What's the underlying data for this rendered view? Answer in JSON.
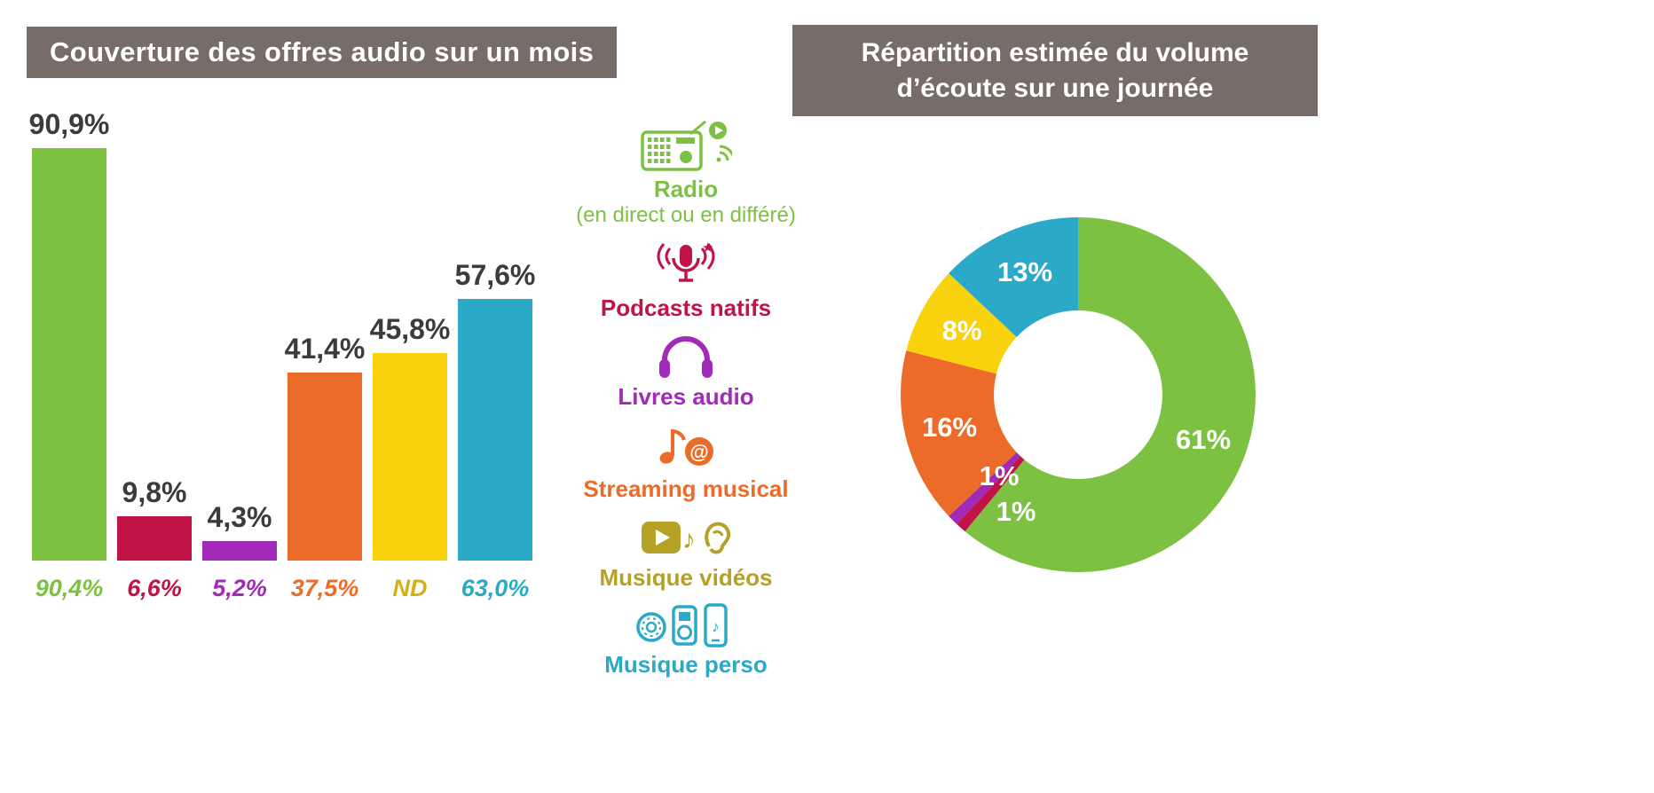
{
  "colors": {
    "title_bg": "#776D68",
    "title_text": "#FFFFFF",
    "value_label": "#3B3B3A",
    "green": "#7DC142",
    "crimson": "#C11346",
    "purple": "#A12BB8",
    "orange": "#EC6B29",
    "yellow": "#F8D20C",
    "olive": "#B5A125",
    "cyan": "#2AAAC8"
  },
  "left_panel": {
    "title": "Couverture des offres audio sur un mois"
  },
  "right_panel": {
    "title_line1": "Répartition estimée du volume",
    "title_line2": "d’écoute sur une journée"
  },
  "legend": {
    "items": [
      {
        "icon": "radio-icon",
        "label": "Radio",
        "sublabel": "(en direct ou en différé)",
        "color": "#7DC142"
      },
      {
        "icon": "podcast-icon",
        "label": "Podcasts natifs",
        "color": "#C11346"
      },
      {
        "icon": "headphones-icon",
        "label": "Livres audio",
        "color": "#A12BB8"
      },
      {
        "icon": "streaming-icon",
        "label": "Streaming musical",
        "color": "#EC6B29"
      },
      {
        "icon": "video-music-icon",
        "label": "Musique vidéos",
        "color": "#B5A125"
      },
      {
        "icon": "personal-music-icon",
        "label": "Musique perso",
        "color": "#2AAAC8"
      }
    ]
  },
  "chart_data": [
    {
      "type": "bar",
      "title": "Couverture des offres audio sur un mois",
      "categories": [
        "Radio (en direct ou en différé)",
        "Podcasts natifs",
        "Livres audio",
        "Streaming musical",
        "Musique vidéos",
        "Musique perso"
      ],
      "values": [
        90.9,
        9.8,
        4.3,
        41.4,
        45.8,
        57.6
      ],
      "value_labels": [
        "90,9%",
        "9,8%",
        "4,3%",
        "41,4%",
        "45,8%",
        "57,6%"
      ],
      "secondary_labels": [
        "90,4%",
        "6,6%",
        "5,2%",
        "37,5%",
        "ND",
        "63,0%"
      ],
      "bar_colors": [
        "#7DC142",
        "#C11346",
        "#A12BB8",
        "#EC6B29",
        "#F8D20C",
        "#2AAAC8"
      ],
      "secondary_label_colors": [
        "#7DC142",
        "#C11346",
        "#A12BB8",
        "#EC6B29",
        "#D3B217",
        "#2AAAC8"
      ],
      "xlabel": "",
      "ylabel": "",
      "ylim": [
        0,
        100
      ],
      "grid": false
    },
    {
      "type": "pie",
      "donut": true,
      "title": "Répartition estimée du volume d’écoute sur une journée",
      "categories": [
        "Radio (en direct ou en différé)",
        "Podcasts natifs",
        "Livres audio",
        "Streaming musical",
        "Musique vidéos",
        "Musique perso"
      ],
      "values": [
        61,
        1,
        1,
        16,
        8,
        13
      ],
      "slice_labels": [
        "61%",
        "1%",
        "1%",
        "16%",
        "8%",
        "13%"
      ],
      "slice_colors": [
        "#7DC142",
        "#C11346",
        "#A12BB8",
        "#EC6B29",
        "#F8D20C",
        "#2AAAC8"
      ],
      "start_angle_deg": 0,
      "direction": "clockwise",
      "label_color": "#FFFFFF",
      "legend_position": "none"
    }
  ]
}
